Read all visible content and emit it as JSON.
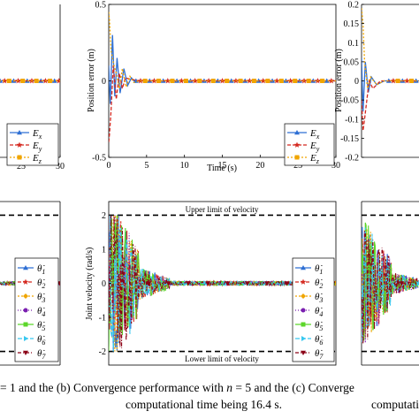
{
  "colors": {
    "theta1": "#2e6fd4",
    "theta2": "#d4281f",
    "theta3": "#f0a500",
    "theta4": "#7a1fb0",
    "theta5": "#5cd62a",
    "theta6": "#38c8f0",
    "theta7": "#8b0016",
    "Ex": "#2e6fd4",
    "Ey": "#d4281f",
    "Ez": "#f0a500"
  },
  "captions": {
    "a_tail": "= 1 and the (b) Convergence performance with",
    "b_var": "n",
    "b_eq": "= 5 and the (c) Converge",
    "line2_b": "computational time being 16.4 s.",
    "line2_c": "computational"
  },
  "chart_data": [
    {
      "id": "a-position",
      "type": "line",
      "xlim": [
        0,
        30
      ],
      "xticks": [
        "25",
        "30"
      ],
      "legend_entries": [
        "E_x",
        "E_y",
        "E_z"
      ],
      "legend_placement": "bottom-right",
      "series": [
        {
          "name": "E_x",
          "x": [
            0,
            30
          ],
          "y": [
            0,
            0
          ]
        },
        {
          "name": "E_y",
          "x": [
            0,
            30
          ],
          "y": [
            0,
            0
          ]
        },
        {
          "name": "E_z",
          "x": [
            0,
            30
          ],
          "y": [
            0,
            0
          ]
        }
      ]
    },
    {
      "id": "b-position",
      "type": "line",
      "ylabel": "Position error (m)",
      "xlabel": "Time (s)",
      "xlim": [
        0,
        30
      ],
      "ylim": [
        -0.5,
        0.5
      ],
      "xticks": [
        "0",
        "5",
        "10",
        "15",
        "20",
        "25",
        "30"
      ],
      "yticks": [
        "-0.5",
        "0",
        "0.5"
      ],
      "legend_entries": [
        "E_x",
        "E_y",
        "E_z"
      ],
      "legend_placement": "bottom-right",
      "series": [
        {
          "name": "E_x",
          "x": [
            0,
            0.2,
            0.5,
            0.8,
            1.1,
            1.5,
            2.0,
            2.5,
            3.0,
            3.5,
            4,
            30
          ],
          "y": [
            0.1,
            -0.15,
            0.3,
            -0.1,
            0.15,
            -0.08,
            0.08,
            -0.03,
            0.02,
            -0.01,
            0,
            0
          ]
        },
        {
          "name": "E_y",
          "x": [
            0,
            0.1,
            0.3,
            0.6,
            1.0,
            1.4,
            1.8,
            2.2,
            3,
            4,
            30
          ],
          "y": [
            -0.4,
            -0.35,
            -0.2,
            0.1,
            -0.12,
            0.05,
            -0.05,
            0.02,
            0.01,
            0,
            0
          ]
        },
        {
          "name": "E_z",
          "x": [
            0,
            0.1,
            0.3,
            0.7,
            1.0,
            1.4,
            1.8,
            2.3,
            2.8,
            3.3,
            4,
            30
          ],
          "y": [
            0.45,
            0.4,
            0.2,
            0.1,
            0.05,
            -0.05,
            0.08,
            -0.04,
            0.03,
            -0.01,
            0,
            0
          ]
        }
      ]
    },
    {
      "id": "c-position",
      "type": "line",
      "ylabel": "Position error (m)",
      "xlim": [
        0,
        30
      ],
      "ylim": [
        -0.2,
        0.2
      ],
      "yticks": [
        "-0.2",
        "-0.15",
        "-0.1",
        "-0.05",
        "0",
        "0.05",
        "0.1",
        "0.15",
        "0.2"
      ],
      "series": [
        {
          "name": "E_x",
          "x": [
            0,
            0.2,
            0.5,
            0.9,
            1.3,
            2,
            3,
            30
          ],
          "y": [
            0.06,
            -0.08,
            0.05,
            -0.03,
            0.01,
            -0.01,
            0,
            0
          ]
        },
        {
          "name": "E_y",
          "x": [
            0,
            0.2,
            0.4,
            0.7,
            1.0,
            1.5,
            2.5,
            30
          ],
          "y": [
            -0.05,
            -0.13,
            -0.1,
            -0.05,
            0,
            -0.02,
            0,
            0
          ]
        },
        {
          "name": "E_z",
          "x": [
            0,
            0.2,
            0.4,
            0.8,
            1.2,
            2,
            3,
            30
          ],
          "y": [
            0.19,
            0.15,
            0.05,
            -0.02,
            0.01,
            -0.01,
            0,
            0
          ]
        }
      ]
    },
    {
      "id": "a-velocity",
      "type": "line",
      "xlim": [
        0,
        30
      ],
      "legend_entries": [
        "θ̇1",
        "θ̇2",
        "θ̇3",
        "θ̇4",
        "θ̇5",
        "θ̇6",
        "θ̇7"
      ],
      "legend_placement": "right",
      "limits": [
        2,
        -2
      ]
    },
    {
      "id": "b-velocity",
      "type": "line",
      "ylabel": "Joint velocity (rad/s)",
      "xlim": [
        0,
        30
      ],
      "ylim": [
        -2.4,
        2.4
      ],
      "yticks": [
        "-2",
        "-1",
        "0",
        "1",
        "2"
      ],
      "upper_label": "Upper limit of velocity",
      "lower_label": "Lower limit of velocity",
      "limits": [
        2,
        -2
      ],
      "legend_entries": [
        "θ̇1",
        "θ̇2",
        "θ̇3",
        "θ̇4",
        "θ̇5",
        "θ̇6",
        "θ̇7"
      ],
      "legend_placement": "right"
    },
    {
      "id": "c-velocity",
      "type": "line",
      "xlim": [
        0,
        30
      ],
      "limits": [
        2,
        -2
      ]
    }
  ]
}
